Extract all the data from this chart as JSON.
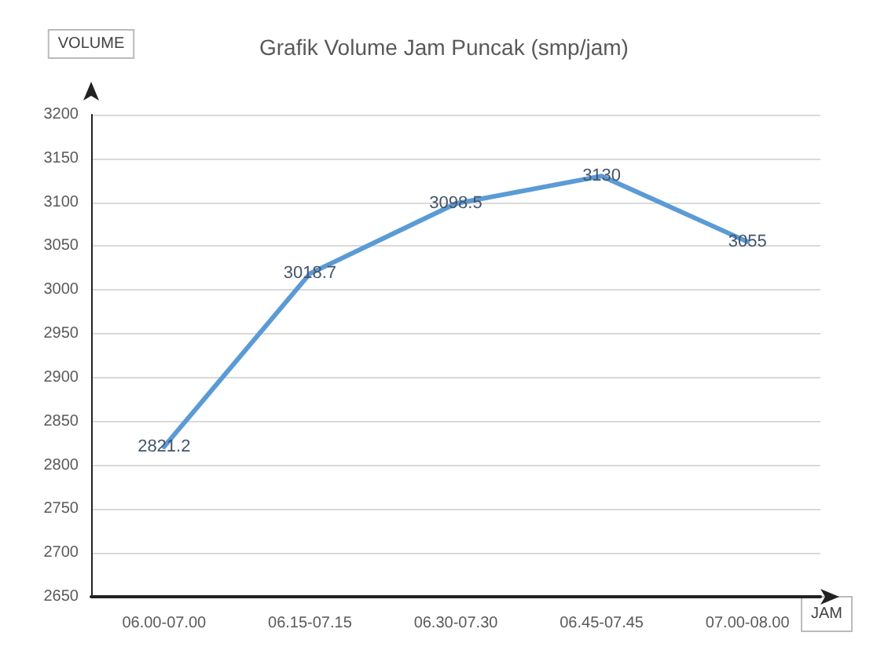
{
  "chart_data": {
    "type": "line",
    "title": "Grafik Volume Jam Puncak (smp/jam)",
    "xlabel": "JAM",
    "ylabel": "VOLUME",
    "categories": [
      "06.00-07.00",
      "06.15-07.15",
      "06.30-07.30",
      "06.45-07.45",
      "07.00-08.00"
    ],
    "series": [
      {
        "color": "#5b9bd5",
        "values": [
          2821.2,
          3018.7,
          3098.5,
          3130,
          3055
        ]
      }
    ],
    "ylim": [
      2650,
      3200
    ],
    "yticks": [
      2650,
      2700,
      2750,
      2800,
      2850,
      2900,
      2950,
      3000,
      3050,
      3100,
      3150,
      3200
    ],
    "grid": "y",
    "data_labels": true,
    "marker": "none",
    "line_style": "solid"
  }
}
